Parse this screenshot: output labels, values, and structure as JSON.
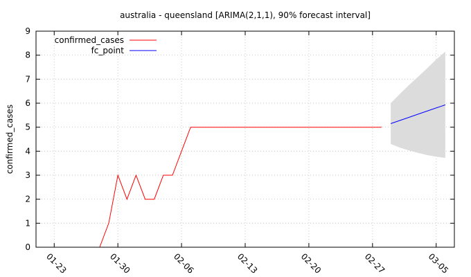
{
  "chart_data": {
    "type": "line",
    "title": "australia - queensland [ARIMA(2,1,1), 90% forecast interval]",
    "ylabel": "confirmed_cases",
    "xlabel": "",
    "ylim": [
      0,
      9
    ],
    "xlim": [
      "2020-01-21",
      "2020-03-07"
    ],
    "y_ticks": [
      0,
      1,
      2,
      3,
      4,
      5,
      6,
      7,
      8,
      9
    ],
    "x_ticks": [
      {
        "date": "2020-01-23",
        "label": "01-23"
      },
      {
        "date": "2020-01-30",
        "label": "01-30"
      },
      {
        "date": "2020-02-06",
        "label": "02-06"
      },
      {
        "date": "2020-02-13",
        "label": "02-13"
      },
      {
        "date": "2020-02-20",
        "label": "02-20"
      },
      {
        "date": "2020-02-27",
        "label": "02-27"
      },
      {
        "date": "2020-03-05",
        "label": "03-05"
      }
    ],
    "grid": true,
    "legend_position": "top-left",
    "series": [
      {
        "name": "confirmed_cases",
        "color": "#ff0000",
        "points": [
          [
            "2020-01-28",
            0
          ],
          [
            "2020-01-29",
            1
          ],
          [
            "2020-01-30",
            3
          ],
          [
            "2020-01-31",
            2
          ],
          [
            "2020-02-01",
            3
          ],
          [
            "2020-02-02",
            2
          ],
          [
            "2020-02-03",
            2
          ],
          [
            "2020-02-04",
            3
          ],
          [
            "2020-02-05",
            3
          ],
          [
            "2020-02-06",
            4
          ],
          [
            "2020-02-07",
            5
          ],
          [
            "2020-02-08",
            5
          ],
          [
            "2020-02-09",
            5
          ],
          [
            "2020-02-10",
            5
          ],
          [
            "2020-02-11",
            5
          ],
          [
            "2020-02-12",
            5
          ],
          [
            "2020-02-13",
            5
          ],
          [
            "2020-02-14",
            5
          ],
          [
            "2020-02-15",
            5
          ],
          [
            "2020-02-16",
            5
          ],
          [
            "2020-02-17",
            5
          ],
          [
            "2020-02-18",
            5
          ],
          [
            "2020-02-19",
            5
          ],
          [
            "2020-02-20",
            5
          ],
          [
            "2020-02-21",
            5
          ],
          [
            "2020-02-22",
            5
          ],
          [
            "2020-02-23",
            5
          ],
          [
            "2020-02-24",
            5
          ],
          [
            "2020-02-25",
            5
          ],
          [
            "2020-02-26",
            5
          ],
          [
            "2020-02-27",
            5
          ],
          [
            "2020-02-28",
            5
          ]
        ]
      },
      {
        "name": "fc_point",
        "color": "#0000ff",
        "points": [
          [
            "2020-02-29",
            5.15
          ],
          [
            "2020-03-01",
            5.28
          ],
          [
            "2020-03-02",
            5.41
          ],
          [
            "2020-03-03",
            5.54
          ],
          [
            "2020-03-04",
            5.67
          ],
          [
            "2020-03-05",
            5.8
          ],
          [
            "2020-03-06",
            5.93
          ]
        ]
      }
    ],
    "forecast_interval": {
      "color": "#dcdcdc",
      "points": [
        [
          "2020-02-29",
          4.3,
          6.0
        ],
        [
          "2020-03-01",
          4.15,
          6.38
        ],
        [
          "2020-03-02",
          4.03,
          6.75
        ],
        [
          "2020-03-03",
          3.93,
          7.1
        ],
        [
          "2020-03-04",
          3.84,
          7.45
        ],
        [
          "2020-03-05",
          3.77,
          7.82
        ],
        [
          "2020-03-06",
          3.72,
          8.15
        ]
      ]
    }
  }
}
